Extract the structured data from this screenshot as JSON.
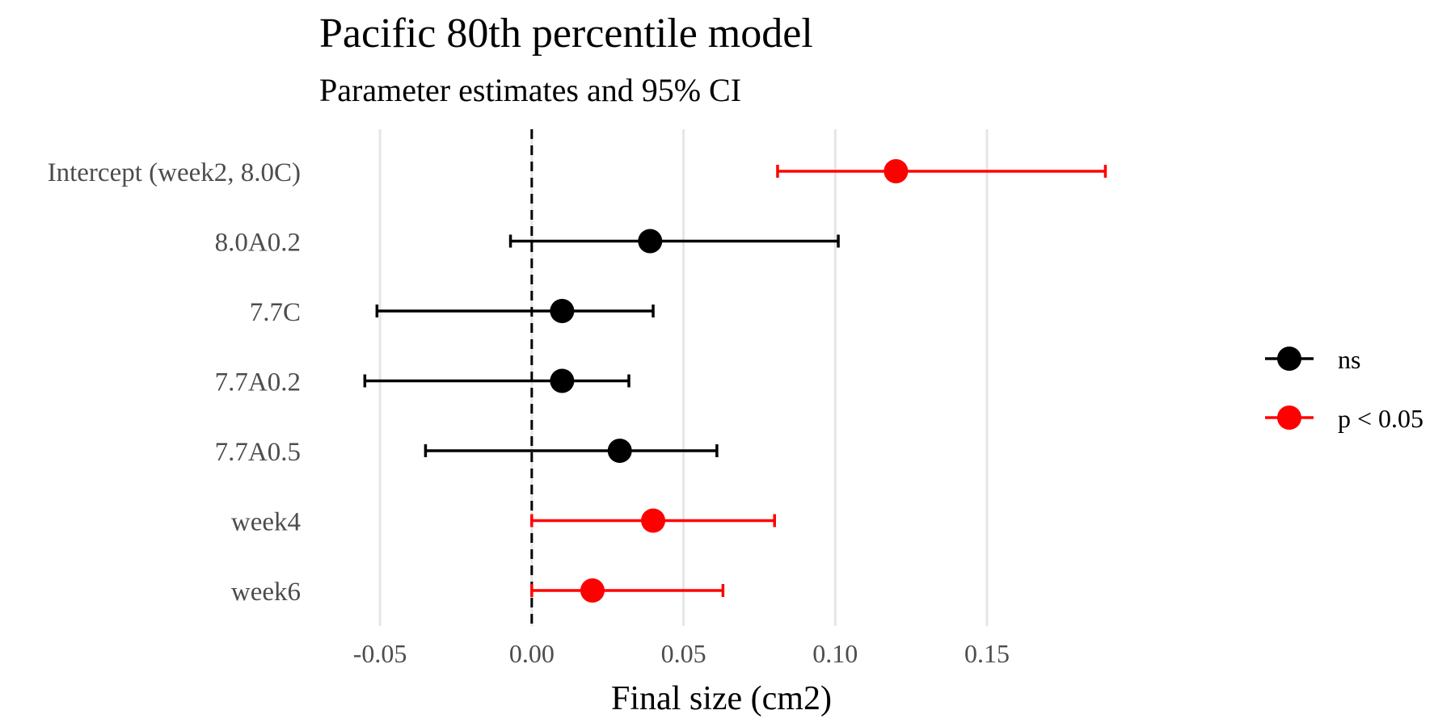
{
  "chart_data": {
    "type": "forest",
    "title": "Pacific 80th percentile model",
    "subtitle": "Parameter estimates and 95% CI",
    "xlabel": "Final size (cm2)",
    "ylabel": "",
    "xlim": [
      -0.07,
      0.195
    ],
    "x_ticks": [
      -0.05,
      0.0,
      0.05,
      0.1,
      0.15
    ],
    "x_tick_labels": [
      "-0.05",
      "0.00",
      "0.05",
      "0.10",
      "0.15"
    ],
    "reference_line": 0.0,
    "grid": "vertical major",
    "legend_position": "right",
    "legend": [
      {
        "label": "ns",
        "color": "#000000"
      },
      {
        "label": "p < 0.05",
        "color": "#ff0000"
      }
    ],
    "rows": [
      {
        "term": "Intercept (week2, 8.0C)",
        "estimate": 0.12,
        "lower": 0.081,
        "upper": 0.189,
        "group": "p < 0.05"
      },
      {
        "term": "8.0A0.2",
        "estimate": 0.039,
        "lower": -0.007,
        "upper": 0.101,
        "group": "ns"
      },
      {
        "term": "7.7C",
        "estimate": 0.01,
        "lower": -0.051,
        "upper": 0.04,
        "group": "ns"
      },
      {
        "term": "7.7A0.2",
        "estimate": 0.01,
        "lower": -0.055,
        "upper": 0.032,
        "group": "ns"
      },
      {
        "term": "7.7A0.5",
        "estimate": 0.029,
        "lower": -0.035,
        "upper": 0.061,
        "group": "ns"
      },
      {
        "term": "week4",
        "estimate": 0.04,
        "lower": 0.0,
        "upper": 0.08,
        "group": "p < 0.05"
      },
      {
        "term": "week6",
        "estimate": 0.02,
        "lower": 0.0,
        "upper": 0.063,
        "group": "p < 0.05"
      }
    ]
  }
}
